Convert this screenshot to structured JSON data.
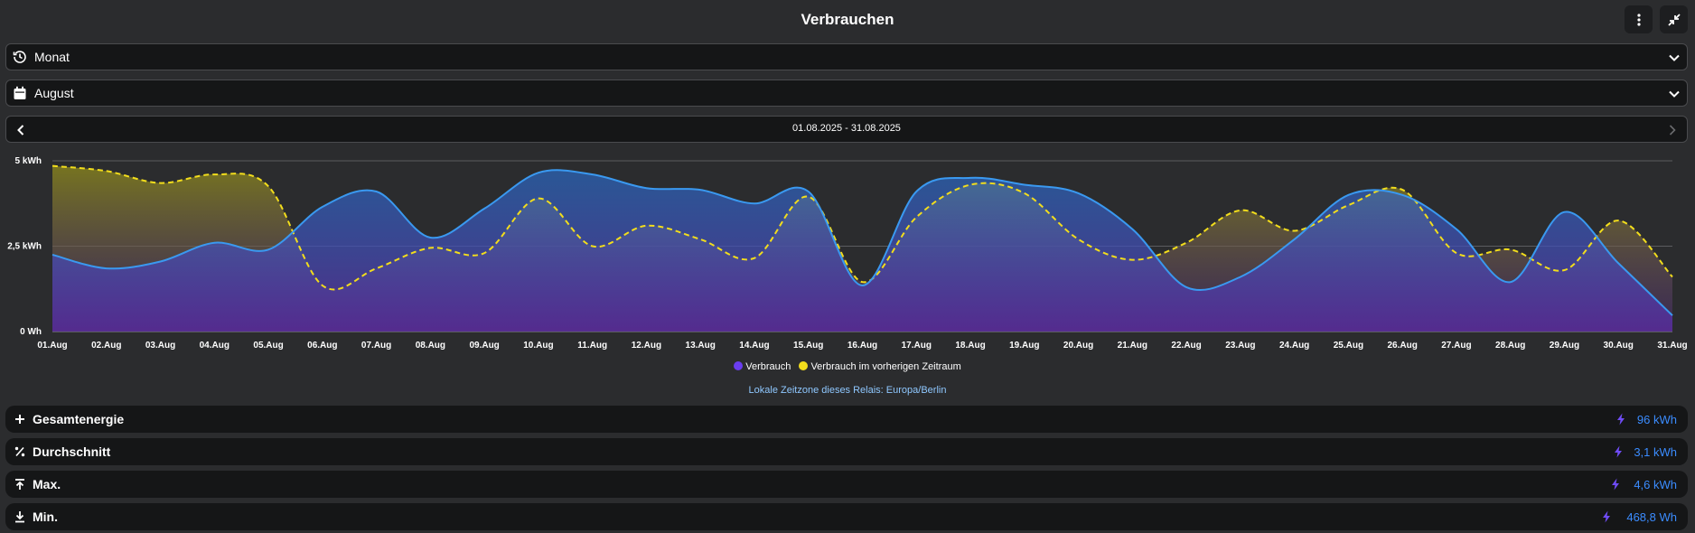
{
  "header": {
    "title": "Verbrauchen"
  },
  "period_select": {
    "value": "Monat"
  },
  "month_select": {
    "value": "August"
  },
  "date_nav": {
    "range": "01.08.2025 - 31.08.2025"
  },
  "chart_data": {
    "type": "area",
    "categories": [
      "01.Aug",
      "02.Aug",
      "03.Aug",
      "04.Aug",
      "05.Aug",
      "06.Aug",
      "07.Aug",
      "08.Aug",
      "09.Aug",
      "10.Aug",
      "11.Aug",
      "12.Aug",
      "13.Aug",
      "14.Aug",
      "15.Aug",
      "16.Aug",
      "17.Aug",
      "18.Aug",
      "19.Aug",
      "20.Aug",
      "21.Aug",
      "22.Aug",
      "23.Aug",
      "24.Aug",
      "25.Aug",
      "26.Aug",
      "27.Aug",
      "28.Aug",
      "29.Aug",
      "30.Aug",
      "31.Aug"
    ],
    "yticks": [
      {
        "value": 0,
        "label": "0 Wh"
      },
      {
        "value": 2.5,
        "label": "2,5 kWh"
      },
      {
        "value": 5,
        "label": "5 kWh"
      }
    ],
    "ylim": [
      0,
      5
    ],
    "series": [
      {
        "name": "Verbrauch",
        "color": "#3a99f0",
        "values": [
          2.25,
          1.85,
          2.05,
          2.6,
          2.4,
          3.65,
          4.1,
          2.75,
          3.6,
          4.65,
          4.6,
          4.2,
          4.15,
          3.75,
          4.1,
          1.35,
          4.1,
          4.5,
          4.3,
          4.05,
          3.0,
          1.3,
          1.6,
          2.7,
          4.0,
          4.0,
          3.0,
          1.45,
          3.5,
          2.0,
          0.47
        ]
      },
      {
        "name": "Verbrauch im vorherigen Zeitraum",
        "color": "#f2dd1c",
        "dashed": true,
        "values": [
          4.85,
          4.7,
          4.35,
          4.6,
          4.25,
          1.35,
          1.85,
          2.45,
          2.3,
          3.9,
          2.5,
          3.1,
          2.7,
          2.15,
          3.95,
          1.45,
          3.35,
          4.3,
          4.05,
          2.7,
          2.1,
          2.6,
          3.55,
          2.95,
          3.7,
          4.15,
          2.3,
          2.4,
          1.8,
          3.25,
          1.6
        ]
      }
    ],
    "grid": true,
    "legend": "bottom-center"
  },
  "timezone_note": "Lokale Zeitzone dieses Relais: Europa/Berlin",
  "stats": [
    {
      "label": "Gesamtenergie",
      "value": "96 kWh",
      "icon": "plus-icon"
    },
    {
      "label": "Durchschnitt",
      "value": "3,1 kWh",
      "icon": "percent-icon"
    },
    {
      "label": "Max.",
      "value": "4,6 kWh",
      "icon": "max-icon"
    },
    {
      "label": "Min.",
      "value": "468,8 Wh",
      "icon": "min-icon"
    }
  ]
}
